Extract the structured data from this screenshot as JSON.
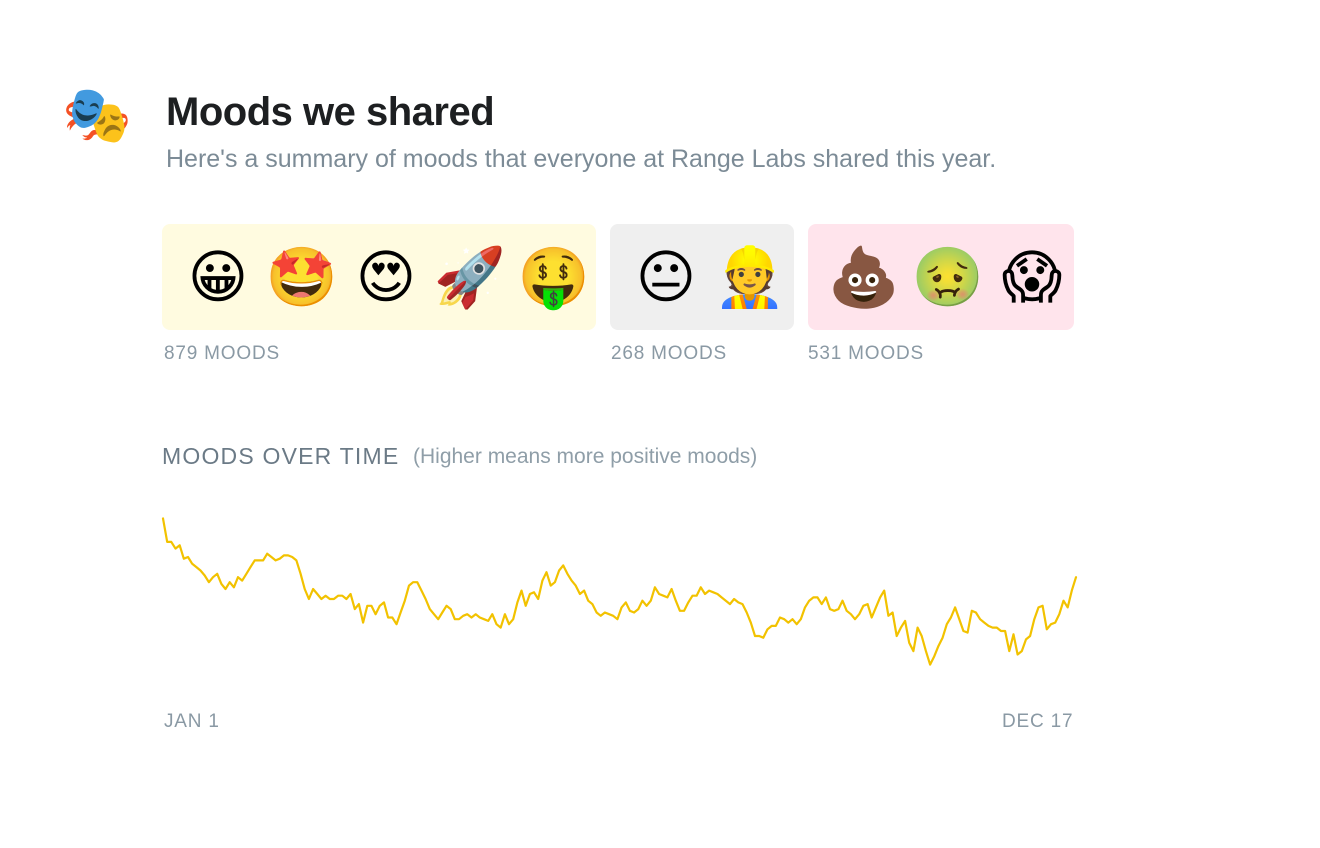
{
  "header": {
    "icon": "🎭",
    "title": "Moods we shared",
    "subtitle": "Here's a summary of moods that everyone at Range Labs shared this year."
  },
  "groups": {
    "positive": {
      "emojis": [
        "😀",
        "🤩",
        "😍",
        "🚀",
        "🤑"
      ],
      "count_label": "879 MOODS",
      "color": "#fffbe0"
    },
    "neutral": {
      "emojis": [
        "😐",
        "👷"
      ],
      "count_label": "268 MOODS",
      "color": "#efefef"
    },
    "negative": {
      "emojis": [
        "💩",
        "🤢",
        "😱"
      ],
      "count_label": "531 MOODS",
      "color": "#ffe4ec"
    }
  },
  "section": {
    "title": "MOODS OVER TIME",
    "note": "(Higher means more positive moods)"
  },
  "chart_data": {
    "type": "line",
    "title": "MOODS OVER TIME",
    "x_start_label": "JAN 1",
    "x_end_label": "DEC 17",
    "line_color": "#f2c200",
    "ylim": [
      0,
      100
    ],
    "grid": false,
    "values": [
      95,
      81,
      81,
      77,
      79,
      71,
      72,
      68,
      66,
      64,
      61,
      57,
      60,
      62,
      56,
      53,
      57,
      54,
      60,
      58,
      62,
      66,
      70,
      70,
      70,
      74,
      72,
      70,
      71,
      73,
      73,
      72,
      70,
      62,
      53,
      47,
      53,
      50,
      47,
      49,
      47,
      47,
      49,
      49,
      47,
      50,
      41,
      44,
      33,
      43,
      43,
      38,
      43,
      45,
      36,
      36,
      32,
      39,
      46,
      55,
      57,
      57,
      52,
      47,
      41,
      38,
      35,
      39,
      43,
      41,
      35,
      35,
      37,
      38,
      36,
      38,
      36,
      35,
      34,
      38,
      32,
      30,
      38,
      32,
      35,
      45,
      52,
      43,
      50,
      51,
      47,
      58,
      63,
      55,
      57,
      64,
      67,
      62,
      58,
      55,
      50,
      52,
      46,
      44,
      39,
      37,
      39,
      38,
      37,
      35,
      42,
      45,
      40,
      39,
      41,
      46,
      43,
      46,
      54,
      50,
      49,
      48,
      53,
      46,
      40,
      40,
      45,
      49,
      49,
      54,
      50,
      52,
      51,
      50,
      48,
      46,
      44,
      47,
      45,
      44,
      39,
      33,
      25,
      25,
      24,
      29,
      31,
      31,
      36,
      35,
      33,
      35,
      32,
      35,
      42,
      46,
      48,
      48,
      44,
      48,
      41,
      40,
      41,
      46,
      40,
      38,
      35,
      38,
      43,
      44,
      36,
      42,
      48,
      52,
      37,
      39,
      25,
      30,
      34,
      21,
      16,
      30,
      25,
      16,
      8,
      13,
      19,
      24,
      32,
      36,
      42,
      35,
      28,
      27,
      40,
      39,
      35,
      33,
      31,
      30,
      30,
      28,
      28,
      16,
      26,
      14,
      16,
      23,
      25,
      35,
      42,
      43,
      29,
      32,
      33,
      38,
      46,
      42,
      52,
      60
    ]
  },
  "labels": {
    "start": "JAN 1",
    "end": "DEC 17"
  }
}
